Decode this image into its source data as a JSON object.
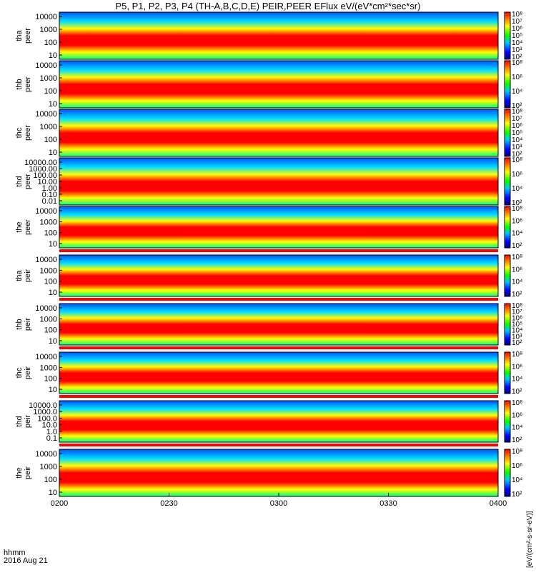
{
  "title": "P5, P1, P2, P3, P4 (TH-A,B,C,D,E) PEIR,PEER EFlux eV/(eV*cm²*sec*sr)",
  "time_label": "hhmm",
  "date_label": "2016 Aug 21",
  "colorbar_units": "[eV/(cm²-s-sr-eV)]",
  "colors": {
    "low": "#0000ff",
    "mid": "#00ff00",
    "high": "#ffff00",
    "max": "#ff0000",
    "ok_bar": "#ffff00",
    "warn_bar": "#ff0000"
  },
  "chart_data": {
    "type": "heatmap",
    "x_ticks": [
      "0200",
      "0230",
      "0300",
      "0330",
      "0400"
    ],
    "x_range": [
      "02:00",
      "04:00"
    ],
    "colorbar_ticks": [
      "10²",
      "10⁴",
      "10⁶",
      "10⁸"
    ],
    "panels": [
      {
        "id": "tha-peer",
        "line1": "tha",
        "line2": "peer",
        "yticks": [
          "10000",
          "1000",
          "100",
          "10"
        ],
        "cb_ticks": [
          "10²",
          "10³",
          "10⁴",
          "10⁵",
          "10⁶",
          "10⁷",
          "10⁸"
        ],
        "status_bar": false
      },
      {
        "id": "thb-peer",
        "line1": "thb",
        "line2": "peer",
        "yticks": [
          "10000",
          "1000",
          "100",
          "10"
        ],
        "cb_ticks": [
          "10²",
          "10⁴",
          "10⁶",
          "10⁸"
        ],
        "status_bar": false
      },
      {
        "id": "thc-peer",
        "line1": "thc",
        "line2": "peer",
        "yticks": [
          "10000",
          "1000",
          "100",
          "10"
        ],
        "cb_ticks": [
          "10²",
          "10³",
          "10⁴",
          "10⁵",
          "10⁶",
          "10⁷",
          "10⁸"
        ],
        "status_bar": false
      },
      {
        "id": "thd-peer",
        "line1": "thd",
        "line2": "peer",
        "yticks": [
          "10000.00",
          "1000.00",
          "100.00",
          "10.00",
          "1.00",
          "0.10",
          "0.01"
        ],
        "cb_ticks": [
          "10²",
          "10⁴",
          "10⁶",
          "10⁸"
        ],
        "status_bar": false
      },
      {
        "id": "the-peer",
        "line1": "the",
        "line2": "peer",
        "yticks": [
          "10000",
          "1000",
          "100",
          "10"
        ],
        "cb_ticks": [
          "10²",
          "10⁴",
          "10⁶",
          "10⁸"
        ],
        "status_bar": true
      },
      {
        "id": "tha-peir",
        "line1": "tha",
        "line2": "peir",
        "yticks": [
          "10000",
          "1000",
          "100",
          "10"
        ],
        "cb_ticks": [
          "10²",
          "10⁴",
          "10⁶",
          "10⁸"
        ],
        "status_bar": true
      },
      {
        "id": "thb-peir",
        "line1": "thb",
        "line2": "peir",
        "yticks": [
          "10000",
          "1000",
          "100",
          "10"
        ],
        "cb_ticks": [
          "10²",
          "10³",
          "10⁴",
          "10⁵",
          "10⁶",
          "10⁷",
          "10⁸"
        ],
        "status_bar": true
      },
      {
        "id": "thc-peir",
        "line1": "thc",
        "line2": "peir",
        "yticks": [
          "10000",
          "1000",
          "100",
          "10"
        ],
        "cb_ticks": [
          "10²",
          "10⁴",
          "10⁶",
          "10⁸"
        ],
        "status_bar": true
      },
      {
        "id": "thd-peir",
        "line1": "thd",
        "line2": "peir",
        "yticks": [
          "10000.0",
          "1000.0",
          "100.0",
          "10.0",
          "1.0",
          "0.1"
        ],
        "cb_ticks": [
          "10²",
          "10⁴",
          "10⁶",
          "10⁸"
        ],
        "status_bar": true
      },
      {
        "id": "the-peir",
        "line1": "the",
        "line2": "peir",
        "yticks": [
          "10000",
          "1000",
          "100",
          "10"
        ],
        "cb_ticks": [
          "10²",
          "10⁴",
          "10⁶",
          "10⁸"
        ],
        "status_bar": false
      }
    ]
  }
}
